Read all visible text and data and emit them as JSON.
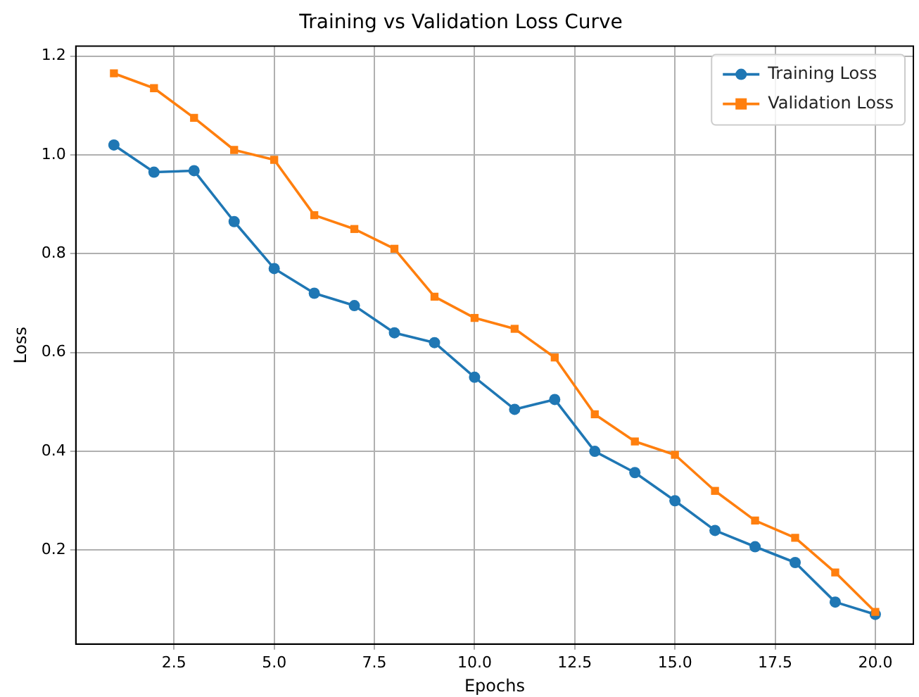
{
  "chart_data": {
    "type": "line",
    "title": "Training vs Validation Loss Curve",
    "xlabel": "Epochs",
    "ylabel": "Loss",
    "x": [
      1,
      2,
      3,
      4,
      5,
      6,
      7,
      8,
      9,
      10,
      11,
      12,
      13,
      14,
      15,
      16,
      17,
      18,
      19,
      20
    ],
    "series": [
      {
        "name": "Training Loss",
        "color": "#1f77b4",
        "marker": "circle",
        "values": [
          1.02,
          0.965,
          0.968,
          0.865,
          0.77,
          0.72,
          0.695,
          0.64,
          0.62,
          0.55,
          0.485,
          0.505,
          0.4,
          0.357,
          0.3,
          0.24,
          0.207,
          0.175,
          0.095,
          0.07
        ]
      },
      {
        "name": "Validation Loss",
        "color": "#ff7f0e",
        "marker": "square",
        "values": [
          1.165,
          1.135,
          1.075,
          1.01,
          0.99,
          0.878,
          0.85,
          0.81,
          0.713,
          0.67,
          0.648,
          0.59,
          0.475,
          0.42,
          0.393,
          0.32,
          0.26,
          0.225,
          0.155,
          0.075
        ]
      }
    ],
    "xlim": [
      0.05,
      20.95
    ],
    "xticks": [
      {
        "value": 2.5,
        "label": "2.5"
      },
      {
        "value": 5,
        "label": "5.0"
      },
      {
        "value": 7.5,
        "label": "7.5"
      },
      {
        "value": 10,
        "label": "10.0"
      },
      {
        "value": 12.5,
        "label": "12.5"
      },
      {
        "value": 15,
        "label": "15.0"
      },
      {
        "value": 17.5,
        "label": "17.5"
      },
      {
        "value": 20,
        "label": "20.0"
      }
    ],
    "ylim": [
      0.01,
      1.22
    ],
    "yticks": [
      {
        "value": 0.2,
        "label": "0.2"
      },
      {
        "value": 0.4,
        "label": "0.4"
      },
      {
        "value": 0.6,
        "label": "0.6"
      },
      {
        "value": 0.8,
        "label": "0.8"
      },
      {
        "value": 1,
        "label": "1.0"
      },
      {
        "value": 1.2,
        "label": "1.2"
      }
    ],
    "grid": true,
    "legend": "top right",
    "line_style": "solid"
  }
}
